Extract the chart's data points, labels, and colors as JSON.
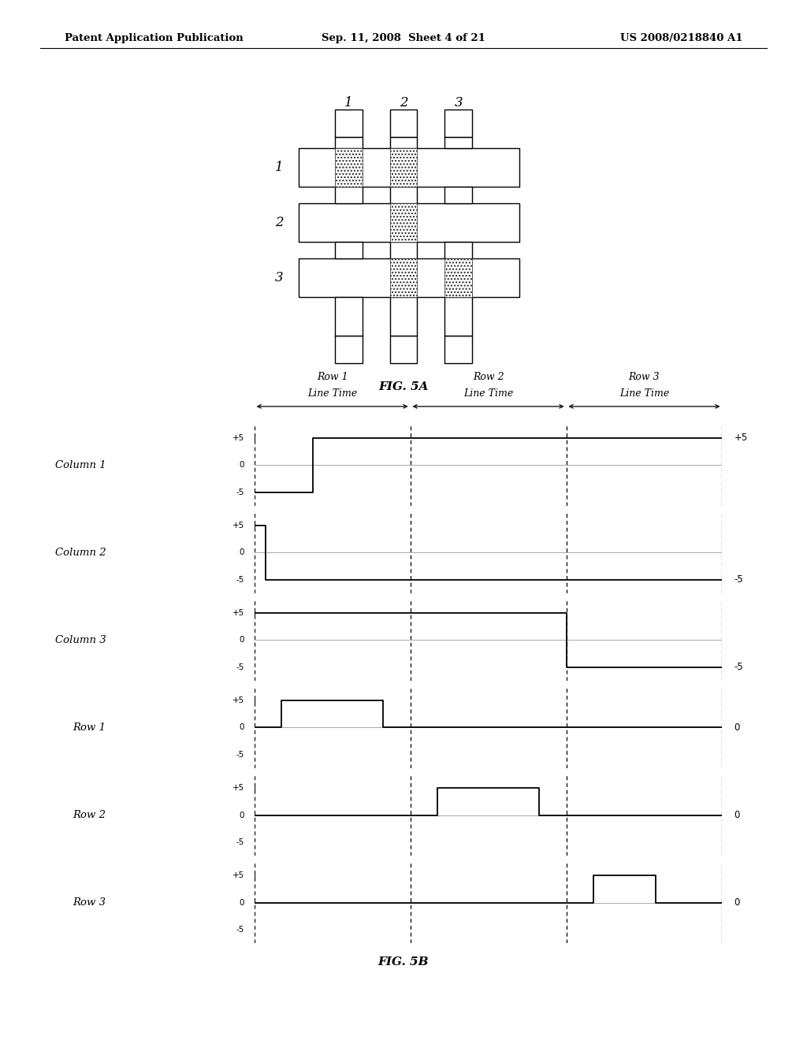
{
  "header_left": "Patent Application Publication",
  "header_center": "Sep. 11, 2008  Sheet 4 of 21",
  "header_right": "US 2008/0218840 A1",
  "fig5a_caption": "FIG. 5A",
  "fig5b_caption": "FIG. 5B",
  "background_color": "#ffffff",
  "line_color": "#000000",
  "waveform_labels": [
    "Column 1",
    "Column 2",
    "Column 3",
    "Row 1",
    "Row 2",
    "Row 3"
  ],
  "row_time_labels_line1": [
    "Row 1",
    "Row 2",
    "Row 3"
  ],
  "row_time_labels_line2": [
    "Line Time",
    "Line Time",
    "Line Time"
  ],
  "right_labels": [
    "+5",
    "-5",
    "-5",
    "0",
    "0",
    "0"
  ],
  "dashed_t": [
    0,
    4,
    8,
    12
  ],
  "row_time_centers": [
    2,
    6,
    10
  ]
}
